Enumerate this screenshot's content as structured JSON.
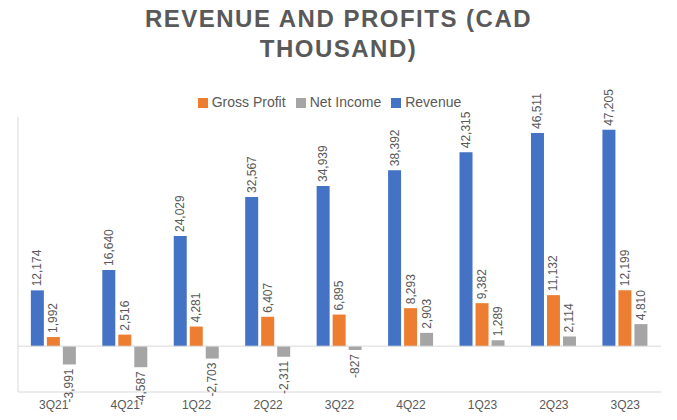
{
  "chart_data": {
    "type": "bar",
    "title": "REVENUE AND PROFITS (CAD THOUSAND)",
    "categories": [
      "3Q21",
      "4Q21",
      "1Q22",
      "2Q22",
      "3Q22",
      "4Q22",
      "1Q23",
      "2Q23",
      "3Q23"
    ],
    "series": [
      {
        "name": "Revenue",
        "color": "#4472c4",
        "values": [
          12174,
          16640,
          24029,
          32567,
          34939,
          38392,
          42315,
          46511,
          47205
        ],
        "value_labels": [
          "12,174",
          "16,640",
          "24,029",
          "32,567",
          "34,939",
          "38,392",
          "42,315",
          "46,511",
          "47,205"
        ]
      },
      {
        "name": "Gross Profit",
        "color": "#ed7d31",
        "values": [
          1992,
          2516,
          4281,
          6407,
          6895,
          8293,
          9382,
          11132,
          12199
        ],
        "value_labels": [
          "1,992",
          "2,516",
          "4,281",
          "6,407",
          "6,895",
          "8,293",
          "9,382",
          "11,132",
          "12,199"
        ]
      },
      {
        "name": "Net Income",
        "color": "#a5a5a5",
        "values": [
          -3991,
          -4587,
          -2703,
          -2311,
          -827,
          2903,
          1289,
          2114,
          4810
        ],
        "value_labels": [
          "-3,991",
          "-4,587",
          "-2,703",
          "-2,311",
          "-827",
          "2,903",
          "1,289",
          "2,114",
          "4,810"
        ]
      }
    ],
    "ylim": [
      -10000,
      50000
    ],
    "grid": false,
    "legend": "top",
    "data_labels": true,
    "tick_labels": "x"
  }
}
